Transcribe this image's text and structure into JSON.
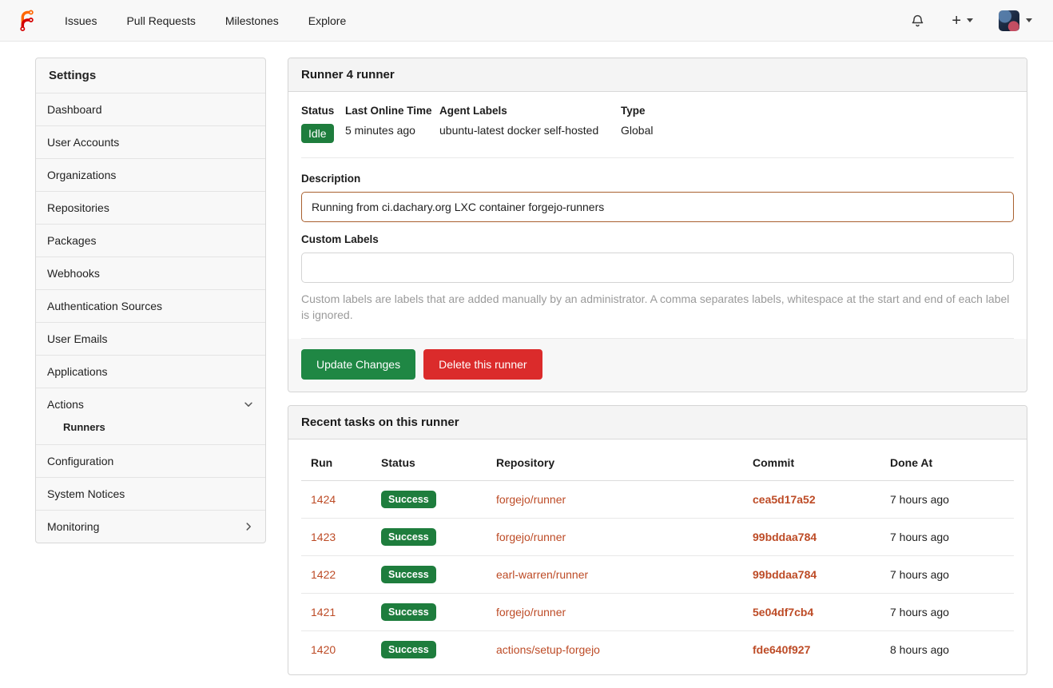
{
  "navbar": {
    "links": [
      "Issues",
      "Pull Requests",
      "Milestones",
      "Explore"
    ],
    "plus_glyph": "+",
    "icons": [
      "forgejo-logo",
      "bell-icon",
      "plus-icon",
      "caret-down-icon",
      "user-avatar"
    ]
  },
  "sidebar": {
    "items": [
      {
        "id": "settings",
        "label": "Settings",
        "header": true
      },
      {
        "id": "dashboard",
        "label": "Dashboard"
      },
      {
        "id": "user-accounts",
        "label": "User Accounts"
      },
      {
        "id": "organizations",
        "label": "Organizations"
      },
      {
        "id": "repositories",
        "label": "Repositories"
      },
      {
        "id": "packages",
        "label": "Packages"
      },
      {
        "id": "webhooks",
        "label": "Webhooks"
      },
      {
        "id": "authentication-sources",
        "label": "Authentication Sources"
      },
      {
        "id": "user-emails",
        "label": "User Emails"
      },
      {
        "id": "applications",
        "label": "Applications"
      },
      {
        "id": "actions",
        "label": "Actions",
        "chevron": "down"
      },
      {
        "id": "runners",
        "label": "Runners",
        "sub": true,
        "active": true
      },
      {
        "id": "configuration",
        "label": "Configuration"
      },
      {
        "id": "system-notices",
        "label": "System Notices"
      },
      {
        "id": "monitoring",
        "label": "Monitoring",
        "chevron": "right"
      }
    ]
  },
  "runner_panel": {
    "title": "Runner 4 runner",
    "status_label": "Status",
    "status_value": "Idle",
    "last_online_label": "Last Online Time",
    "last_online_value": "5 minutes ago",
    "agent_labels_label": "Agent Labels",
    "agent_labels_value": "ubuntu-latest docker self-hosted",
    "type_label": "Type",
    "type_value": "Global",
    "description_label": "Description",
    "description_value": "Running from ci.dachary.org LXC container forgejo-runners",
    "custom_labels_label": "Custom Labels",
    "custom_labels_value": "",
    "custom_labels_help": "Custom labels are labels that are added manually by an administrator. A comma separates labels, whitespace at the start and end of each label is ignored.",
    "update_button": "Update Changes",
    "delete_button": "Delete this runner"
  },
  "tasks_panel": {
    "title": "Recent tasks on this runner",
    "columns": [
      "Run",
      "Status",
      "Repository",
      "Commit",
      "Done At"
    ],
    "rows": [
      {
        "run": "1424",
        "status": "Success",
        "repository": "forgejo/runner",
        "commit": "cea5d17a52",
        "done_at": "7 hours ago"
      },
      {
        "run": "1423",
        "status": "Success",
        "repository": "forgejo/runner",
        "commit": "99bddaa784",
        "done_at": "7 hours ago"
      },
      {
        "run": "1422",
        "status": "Success",
        "repository": "earl-warren/runner",
        "commit": "99bddaa784",
        "done_at": "7 hours ago"
      },
      {
        "run": "1421",
        "status": "Success",
        "repository": "forgejo/runner",
        "commit": "5e04df7cb4",
        "done_at": "7 hours ago"
      },
      {
        "run": "1420",
        "status": "Success",
        "repository": "actions/setup-forgejo",
        "commit": "fde640f927",
        "done_at": "8 hours ago"
      }
    ]
  },
  "colors": {
    "success_green": "#1e7d3d",
    "button_green": "#1f8744",
    "button_red": "#db2b2b",
    "link_orange": "#bd4b26",
    "focused_input_border": "#a9602f",
    "logo_orange": "#ff6600",
    "logo_red": "#d40000"
  }
}
